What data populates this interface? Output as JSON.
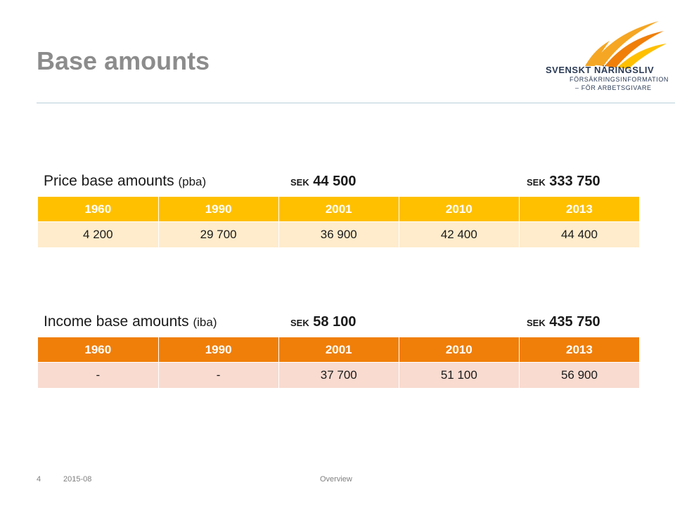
{
  "slide": {
    "title": "Base amounts",
    "page_number": "4",
    "date": "2015-08",
    "section": "Overview"
  },
  "logo": {
    "name": "SVENSKT NÄRINGSLIV",
    "sub1": "FÖRSÄKRINGSINFORMATION",
    "sub2": "– FÖR ARBETSGIVARE",
    "colors": [
      "#f5a623",
      "#f07f09",
      "#ffc000"
    ]
  },
  "pba": {
    "label": "Price base amounts",
    "abbr": "(pba)",
    "amount1_currency": "SEK",
    "amount1_value": "44 500",
    "amount2_currency": "SEK",
    "amount2_value": "333 750",
    "header_color": "#ffc000",
    "row_color": "#ffeccc",
    "years": [
      "1960",
      "1990",
      "2001",
      "2010",
      "2013"
    ],
    "values": [
      "4 200",
      "29 700",
      "36 900",
      "42 400",
      "44 400"
    ]
  },
  "iba": {
    "label": "Income base amounts",
    "abbr": "(iba)",
    "amount1_currency": "SEK",
    "amount1_value": "58 100",
    "amount2_currency": "SEK",
    "amount2_value": "435 750",
    "header_color": "#f07f09",
    "row_color": "#f9dbd0",
    "years": [
      "1960",
      "1990",
      "2001",
      "2010",
      "2013"
    ],
    "values": [
      "-",
      "-",
      "37 700",
      "51 100",
      "56 900"
    ]
  }
}
